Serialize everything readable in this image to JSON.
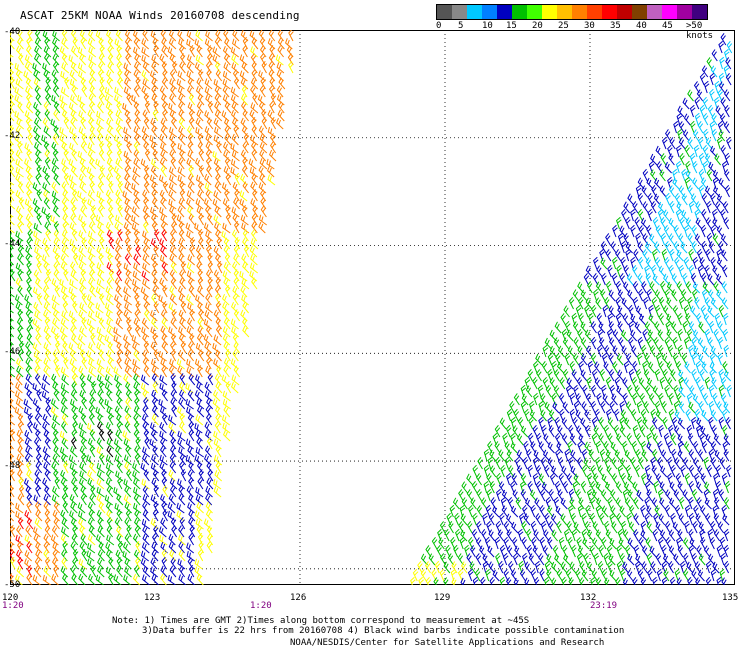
{
  "title": "ASCAT 25KM NOAA Winds 20160708 descending",
  "legend": {
    "colors": [
      "#555555",
      "#888888",
      "#00c8ff",
      "#0080ff",
      "#0000c0",
      "#00c000",
      "#40ff00",
      "#ffff00",
      "#ffc000",
      "#ff8000",
      "#ff4000",
      "#ff0000",
      "#c00000",
      "#804000",
      "#c060c0",
      "#ff00ff",
      "#a000a0",
      "#400080"
    ],
    "labels": [
      "0",
      "5",
      "10",
      "15",
      "20",
      "25",
      "30",
      "35",
      "40",
      "45",
      ">50 knots"
    ]
  },
  "axes": {
    "lat_labels": [
      "-40",
      "-42",
      "-44",
      "-46",
      "-48",
      "-50"
    ],
    "lat_values": [
      -40,
      -42,
      -44,
      -46,
      -48,
      -50
    ],
    "lon_labels": [
      "120",
      "123",
      "126",
      "129",
      "132",
      "135"
    ],
    "lon_values": [
      120,
      123,
      126,
      129,
      132,
      135
    ],
    "lat_range": [
      -50.3,
      -40.0
    ],
    "lon_range": [
      120,
      135
    ]
  },
  "time_labels": [
    "1:20",
    "1:20",
    "23:19"
  ],
  "notes": {
    "line1": "Note: 1) Times are GMT 2)Times along bottom correspond to measurement at ~45S",
    "line2": "3)Data buffer is 22 hrs from 20160708 4) Black wind barbs indicate possible contamination",
    "credit": "NOAA/NESDIS/Center for Satellite Applications and Research"
  },
  "barb_colors": {
    "low": "#0000c0",
    "mid_low": "#00c8ff",
    "mid": "#00c000",
    "mid_high": "#ffff00",
    "high": "#ff8000",
    "very_high": "#ff0000",
    "contaminated": "#000000"
  }
}
